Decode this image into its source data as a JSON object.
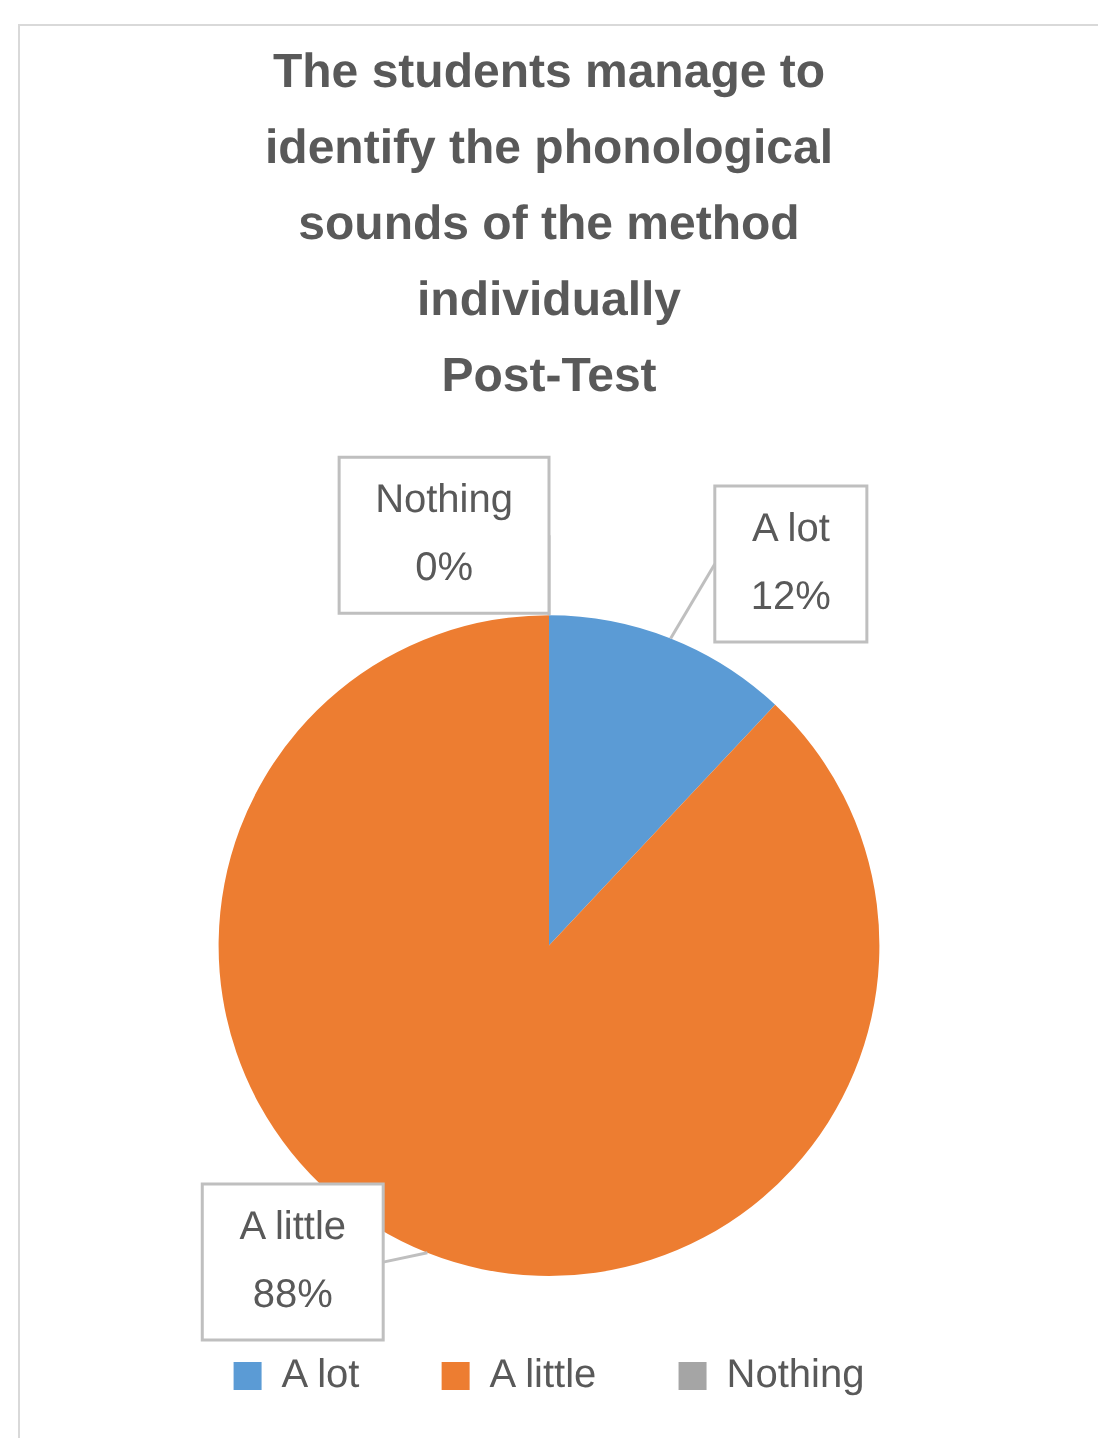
{
  "chart_data": {
    "type": "pie",
    "title": [
      "The students manage to",
      "identify the phonological",
      "sounds of the method",
      "individually",
      "Post-Test"
    ],
    "categories": [
      "A lot",
      "A little",
      "Nothing"
    ],
    "values": [
      12,
      88,
      0
    ],
    "value_labels": [
      "12%",
      "88%",
      "0%"
    ],
    "colors": [
      "#5b9bd5",
      "#ed7d31",
      "#a5a5a5"
    ],
    "legend": "bottom"
  }
}
